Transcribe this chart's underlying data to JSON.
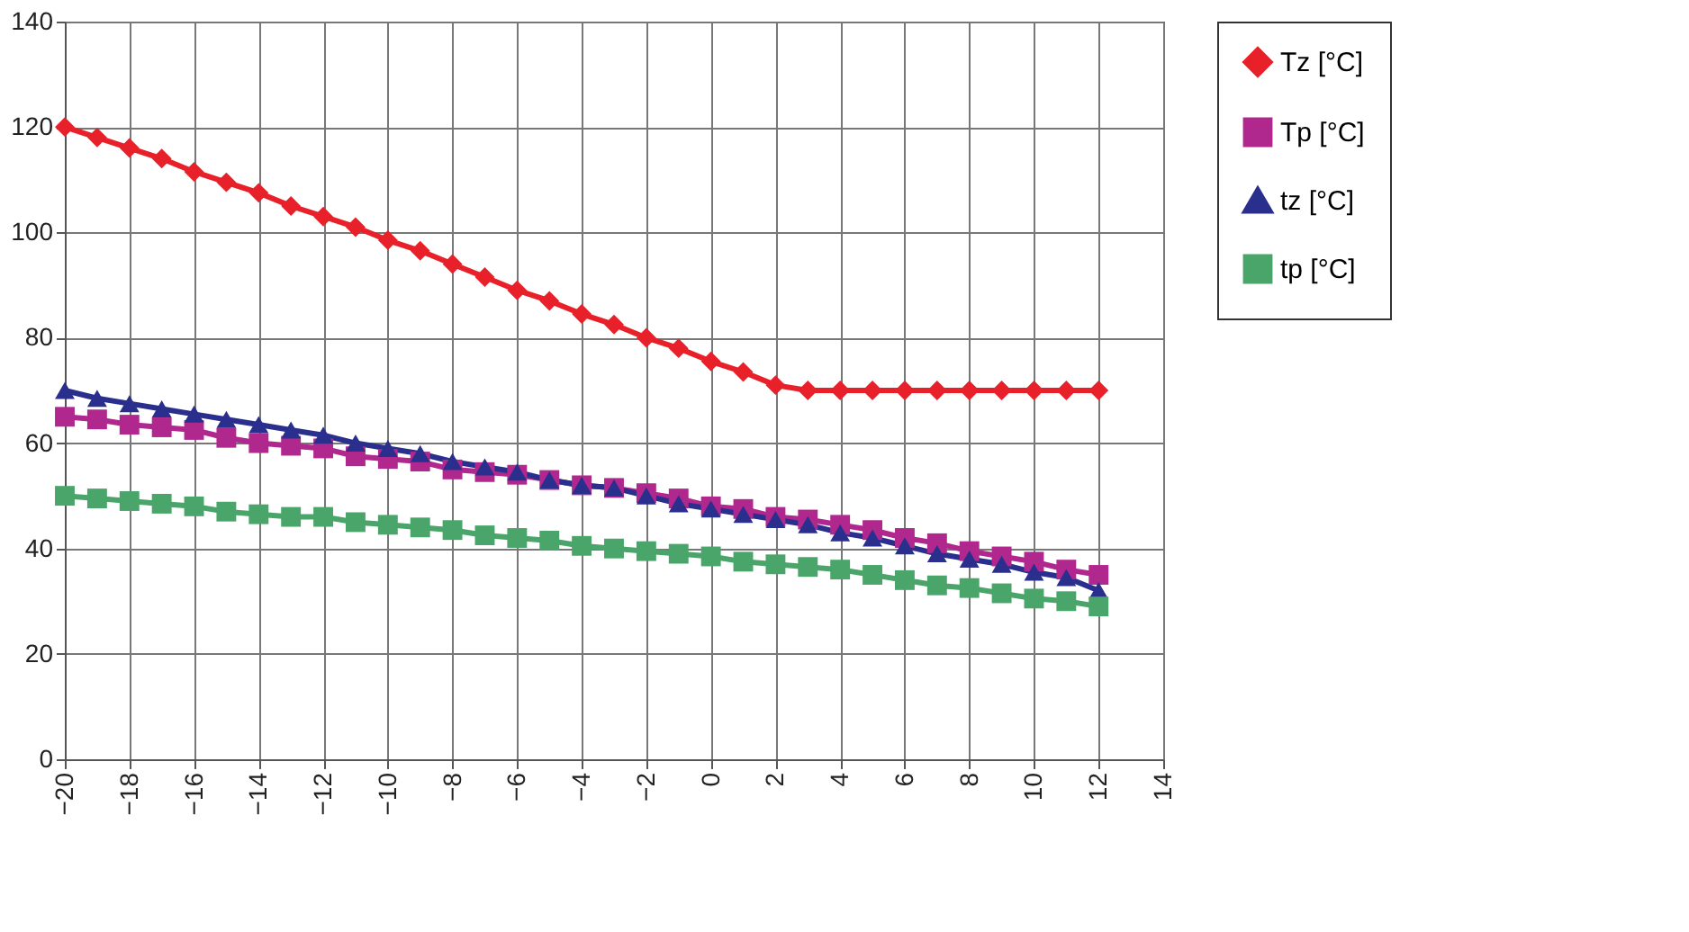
{
  "chart_data": {
    "type": "line",
    "x": [
      -20,
      -19,
      -18,
      -17,
      -16,
      -15,
      -14,
      -13,
      -12,
      -11,
      -10,
      -9,
      -8,
      -7,
      -6,
      -5,
      -4,
      -3,
      -2,
      -1,
      0,
      1,
      2,
      3,
      4,
      5,
      6,
      7,
      8,
      9,
      10,
      11,
      12
    ],
    "series": [
      {
        "name": "Tz [°C]",
        "color": "#e8202a",
        "marker": "diamond",
        "values": [
          120,
          118,
          116,
          114,
          111.5,
          109.5,
          107.5,
          105,
          103,
          101,
          98.5,
          96.5,
          94,
          91.5,
          89,
          87,
          84.5,
          82.5,
          80,
          78,
          75.5,
          73.5,
          71,
          70,
          70,
          70,
          70,
          70,
          70,
          70,
          70,
          70,
          70
        ]
      },
      {
        "name": "Tp [°C]",
        "color": "#b0288e",
        "marker": "square",
        "values": [
          65,
          64.5,
          63.5,
          63,
          62.5,
          61,
          60,
          59.5,
          59,
          57.5,
          57,
          56.5,
          55,
          54.5,
          54,
          53,
          52,
          51.5,
          50.5,
          49.5,
          48,
          47.5,
          46,
          45.5,
          44.5,
          43.5,
          42,
          41,
          39.5,
          38.5,
          37.5,
          36,
          35
        ]
      },
      {
        "name": "tz [°C]",
        "color": "#2a2f8e",
        "marker": "triangle",
        "values": [
          70,
          68.5,
          67.5,
          66.5,
          65.5,
          64.5,
          63.5,
          62.5,
          61.5,
          60,
          59,
          58,
          56.5,
          55.5,
          54.5,
          53,
          52,
          51.5,
          50,
          48.5,
          47.5,
          46.5,
          45.5,
          44.5,
          43,
          42,
          40.5,
          39,
          38,
          37,
          35.5,
          34.5,
          32
        ]
      },
      {
        "name": "tp [°C]",
        "color": "#4aa56a",
        "marker": "square",
        "values": [
          50,
          49.5,
          49,
          48.5,
          48,
          47,
          46.5,
          46,
          46,
          45,
          44.5,
          44,
          43.5,
          42.5,
          42,
          41.5,
          40.5,
          40,
          39.5,
          39,
          38.5,
          37.5,
          37,
          36.5,
          36,
          35,
          34,
          33,
          32.5,
          31.5,
          30.5,
          30,
          29
        ]
      }
    ],
    "xlim": [
      -20,
      14
    ],
    "xticks": [
      -20,
      -18,
      -16,
      -14,
      -12,
      -10,
      -8,
      -6,
      -4,
      -2,
      0,
      2,
      4,
      6,
      8,
      10,
      12,
      14
    ],
    "ylim": [
      0,
      140
    ],
    "yticks": [
      0,
      20,
      40,
      60,
      80,
      100,
      120,
      140
    ],
    "grid": true,
    "legend": "right",
    "line_style": "solid"
  }
}
